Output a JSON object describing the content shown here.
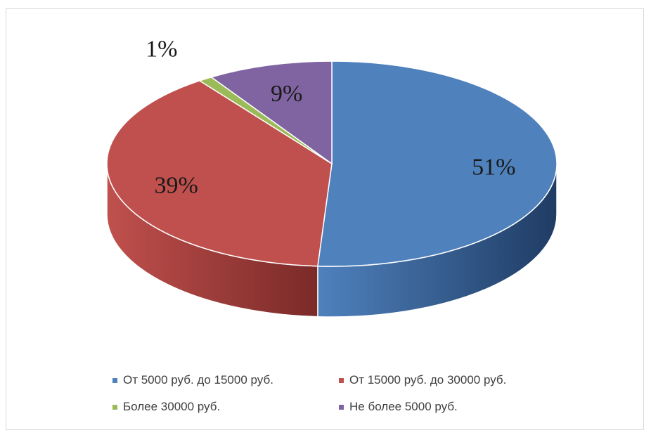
{
  "chart_data": {
    "type": "pie",
    "title": "",
    "style": "3d",
    "slices": [
      {
        "label": "От 5000 руб. до 15000 руб.",
        "value": 51,
        "value_label": "51%",
        "color": "#4f81bd",
        "side_color": "#1f3c64"
      },
      {
        "label": "От 15000 руб. до 30000 руб.",
        "value": 39,
        "value_label": "39%",
        "color": "#c0504d",
        "side_color": "#7a2a28"
      },
      {
        "label": "Более 30000 руб.",
        "value": 1,
        "value_label": "1%",
        "color": "#9bbb59",
        "side_color": "#5f7a2f"
      },
      {
        "label": "Не более 5000 руб.",
        "value": 9,
        "value_label": "9%",
        "color": "#8064a2",
        "side_color": "#4b3865"
      }
    ],
    "legend_placement": "bottom"
  }
}
